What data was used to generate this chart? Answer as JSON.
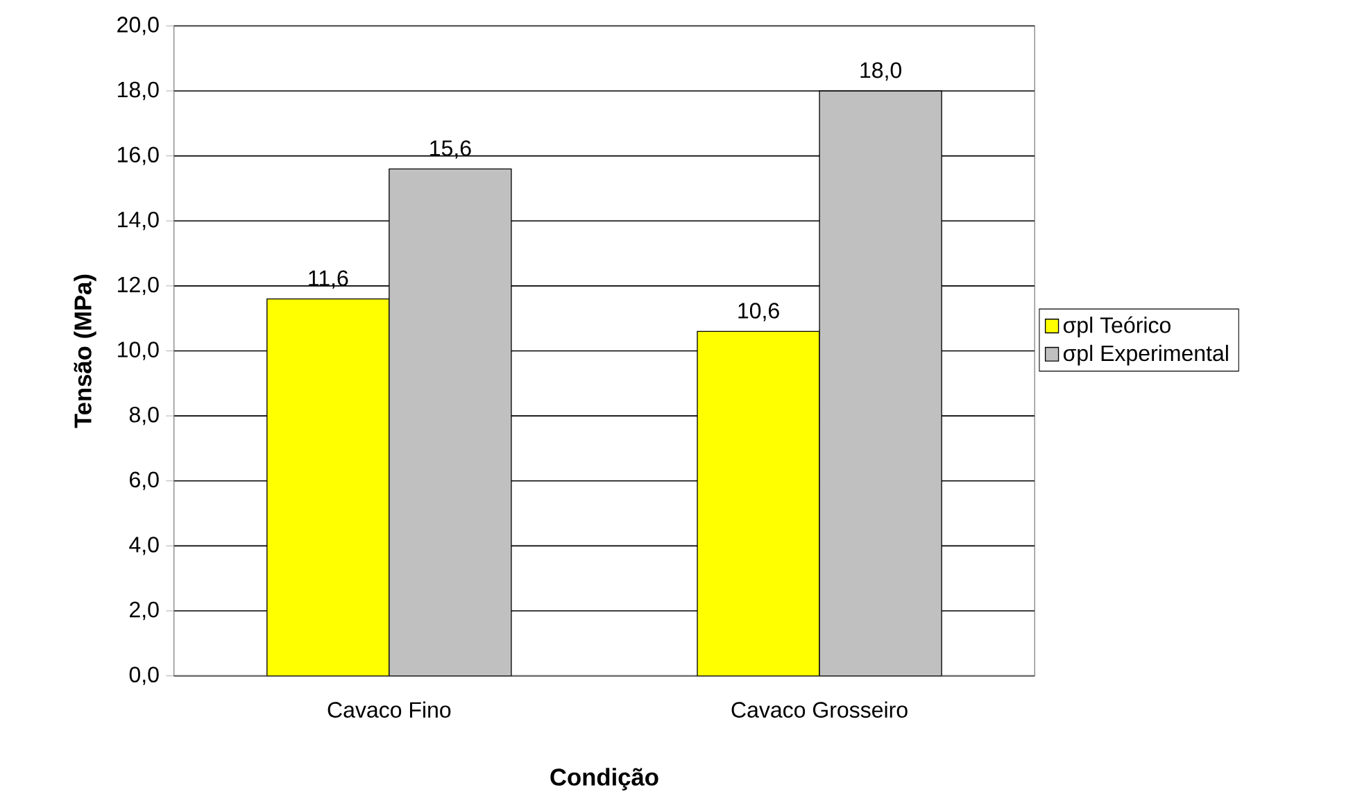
{
  "chart_data": {
    "type": "bar",
    "xlabel": "Condição",
    "ylabel": "Tensão (MPa)",
    "categories": [
      "Cavaco Fino",
      "Cavaco Grosseiro"
    ],
    "series": [
      {
        "name": "σpl Teórico",
        "color": "#ffff00",
        "values": [
          11.6,
          10.6
        ],
        "value_labels": [
          "11,6",
          "10,6"
        ]
      },
      {
        "name": "σpl Experimental",
        "color": "#c0c0c0",
        "values": [
          15.6,
          18.0
        ],
        "value_labels": [
          "15,6",
          "18,0"
        ]
      }
    ],
    "ylim": [
      0,
      20
    ],
    "yticks": [
      {
        "value": 0,
        "label": "0,0"
      },
      {
        "value": 2,
        "label": "2,0"
      },
      {
        "value": 4,
        "label": "4,0"
      },
      {
        "value": 6,
        "label": "6,0"
      },
      {
        "value": 8,
        "label": "8,0"
      },
      {
        "value": 10,
        "label": "10,0"
      },
      {
        "value": 12,
        "label": "12,0"
      },
      {
        "value": 14,
        "label": "14,0"
      },
      {
        "value": 16,
        "label": "16,0"
      },
      {
        "value": 18,
        "label": "18,0"
      },
      {
        "value": 20,
        "label": "20,0"
      }
    ],
    "grid": "y",
    "legend": "right"
  }
}
